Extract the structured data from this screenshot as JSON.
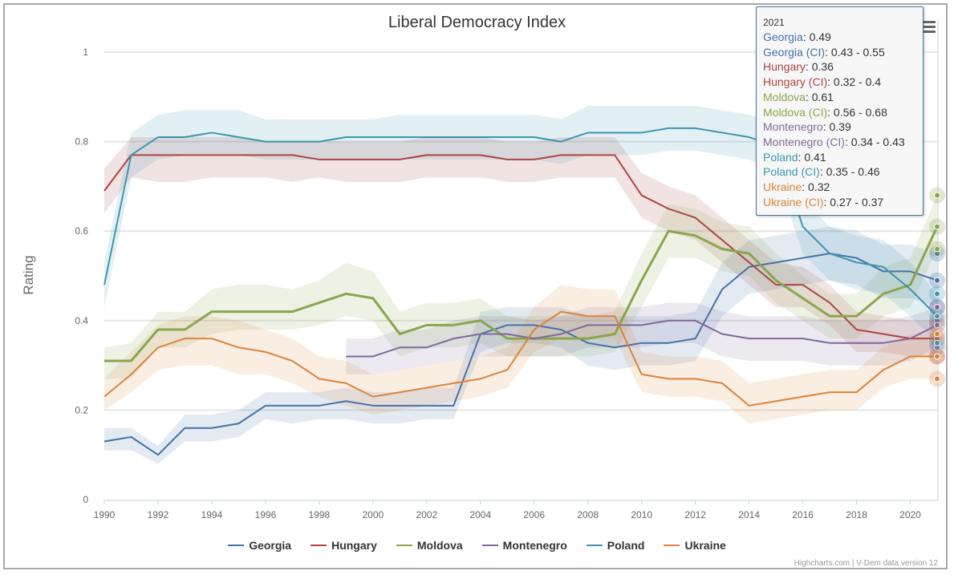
{
  "chart_data": {
    "type": "line",
    "title": "Liberal Democracy Index",
    "ylabel": "Rating",
    "xlabel": "",
    "ylim": [
      0,
      1
    ],
    "xlim": [
      1990,
      2021
    ],
    "y_ticks": [
      "0",
      "0.2",
      "0.4",
      "0.6",
      "0.8",
      "1"
    ],
    "x_ticks": [
      "1990",
      "1992",
      "1994",
      "1996",
      "1998",
      "2000",
      "2002",
      "2004",
      "2006",
      "2008",
      "2010",
      "2012",
      "2014",
      "2016",
      "2018",
      "2020"
    ],
    "grid": true,
    "legend_placement": "bottom",
    "x": [
      1990,
      1991,
      1992,
      1993,
      1994,
      1995,
      1996,
      1997,
      1998,
      1999,
      2000,
      2001,
      2002,
      2003,
      2004,
      2005,
      2006,
      2007,
      2008,
      2009,
      2010,
      2011,
      2012,
      2013,
      2014,
      2015,
      2016,
      2017,
      2018,
      2019,
      2020,
      2021
    ],
    "series": [
      {
        "name": "Georgia",
        "color": "#4572A7",
        "values": [
          0.13,
          0.14,
          0.1,
          0.16,
          0.16,
          0.17,
          0.21,
          0.21,
          0.21,
          0.22,
          0.21,
          0.21,
          0.21,
          0.21,
          0.37,
          0.39,
          0.39,
          0.38,
          0.35,
          0.34,
          0.35,
          0.35,
          0.36,
          0.47,
          0.52,
          0.53,
          0.54,
          0.55,
          0.54,
          0.51,
          0.51,
          0.49
        ],
        "ci_low": [
          0.11,
          0.11,
          0.08,
          0.13,
          0.13,
          0.14,
          0.18,
          0.17,
          0.18,
          0.18,
          0.17,
          0.17,
          0.18,
          0.18,
          0.33,
          0.35,
          0.35,
          0.34,
          0.3,
          0.29,
          0.3,
          0.3,
          0.31,
          0.41,
          0.46,
          0.47,
          0.48,
          0.49,
          0.48,
          0.45,
          0.45,
          0.43
        ],
        "ci_high": [
          0.16,
          0.16,
          0.12,
          0.19,
          0.19,
          0.2,
          0.24,
          0.24,
          0.24,
          0.25,
          0.24,
          0.24,
          0.25,
          0.25,
          0.42,
          0.43,
          0.43,
          0.43,
          0.41,
          0.41,
          0.41,
          0.41,
          0.42,
          0.53,
          0.58,
          0.59,
          0.6,
          0.61,
          0.6,
          0.57,
          0.57,
          0.55
        ]
      },
      {
        "name": "Hungary",
        "color": "#AA4643",
        "values": [
          0.69,
          0.77,
          0.77,
          0.77,
          0.77,
          0.77,
          0.77,
          0.77,
          0.76,
          0.76,
          0.76,
          0.76,
          0.77,
          0.77,
          0.77,
          0.76,
          0.76,
          0.77,
          0.77,
          0.77,
          0.68,
          0.65,
          0.63,
          0.58,
          0.53,
          0.48,
          0.48,
          0.44,
          0.38,
          0.37,
          0.36,
          0.36
        ],
        "ci_low": [
          0.64,
          0.72,
          0.71,
          0.71,
          0.72,
          0.72,
          0.72,
          0.71,
          0.72,
          0.71,
          0.71,
          0.71,
          0.72,
          0.72,
          0.72,
          0.71,
          0.71,
          0.72,
          0.72,
          0.72,
          0.63,
          0.6,
          0.58,
          0.53,
          0.48,
          0.43,
          0.43,
          0.39,
          0.33,
          0.33,
          0.32,
          0.32
        ],
        "ci_high": [
          0.74,
          0.81,
          0.81,
          0.81,
          0.81,
          0.81,
          0.8,
          0.8,
          0.8,
          0.8,
          0.8,
          0.8,
          0.81,
          0.81,
          0.81,
          0.8,
          0.8,
          0.81,
          0.81,
          0.81,
          0.73,
          0.7,
          0.68,
          0.63,
          0.58,
          0.53,
          0.52,
          0.48,
          0.42,
          0.41,
          0.4,
          0.4
        ]
      },
      {
        "name": "Moldova",
        "color": "#89A54E",
        "values": [
          0.31,
          0.31,
          0.38,
          0.38,
          0.42,
          0.42,
          0.42,
          0.42,
          0.44,
          0.46,
          0.45,
          0.37,
          0.39,
          0.39,
          0.4,
          0.36,
          0.36,
          0.36,
          0.36,
          0.37,
          0.49,
          0.6,
          0.59,
          0.56,
          0.55,
          0.49,
          0.45,
          0.41,
          0.41,
          0.46,
          0.48,
          0.61
        ],
        "ci_low": [
          0.27,
          0.27,
          0.34,
          0.34,
          0.37,
          0.38,
          0.38,
          0.38,
          0.39,
          0.41,
          0.4,
          0.32,
          0.34,
          0.34,
          0.35,
          0.32,
          0.32,
          0.32,
          0.32,
          0.33,
          0.43,
          0.54,
          0.54,
          0.51,
          0.5,
          0.44,
          0.4,
          0.36,
          0.36,
          0.41,
          0.43,
          0.56
        ],
        "ci_high": [
          0.34,
          0.35,
          0.42,
          0.42,
          0.47,
          0.48,
          0.48,
          0.47,
          0.49,
          0.53,
          0.51,
          0.42,
          0.44,
          0.44,
          0.45,
          0.41,
          0.41,
          0.41,
          0.41,
          0.42,
          0.55,
          0.66,
          0.65,
          0.62,
          0.61,
          0.55,
          0.5,
          0.46,
          0.46,
          0.52,
          0.54,
          0.68
        ]
      },
      {
        "name": "Montenegro",
        "color": "#80699B",
        "values": [
          null,
          null,
          null,
          null,
          null,
          null,
          null,
          null,
          null,
          0.32,
          0.32,
          0.34,
          0.34,
          0.36,
          0.37,
          0.37,
          0.36,
          0.37,
          0.39,
          0.39,
          0.39,
          0.4,
          0.4,
          0.37,
          0.36,
          0.36,
          0.36,
          0.35,
          0.35,
          0.35,
          0.36,
          0.39
        ],
        "ci_low": [
          null,
          null,
          null,
          null,
          null,
          null,
          null,
          null,
          null,
          0.28,
          0.28,
          0.29,
          0.3,
          0.31,
          0.32,
          0.32,
          0.32,
          0.32,
          0.34,
          0.34,
          0.34,
          0.35,
          0.35,
          0.32,
          0.31,
          0.31,
          0.31,
          0.3,
          0.3,
          0.3,
          0.31,
          0.34
        ],
        "ci_high": [
          null,
          null,
          null,
          null,
          null,
          null,
          null,
          null,
          null,
          0.36,
          0.36,
          0.38,
          0.38,
          0.4,
          0.41,
          0.41,
          0.4,
          0.41,
          0.43,
          0.43,
          0.43,
          0.44,
          0.44,
          0.42,
          0.41,
          0.41,
          0.41,
          0.4,
          0.4,
          0.4,
          0.41,
          0.43
        ]
      },
      {
        "name": "Poland",
        "color": "#3D96AE",
        "values": [
          0.48,
          0.77,
          0.81,
          0.81,
          0.82,
          0.81,
          0.8,
          0.8,
          0.8,
          0.81,
          0.81,
          0.81,
          0.81,
          0.81,
          0.81,
          0.81,
          0.81,
          0.8,
          0.82,
          0.82,
          0.82,
          0.83,
          0.83,
          0.82,
          0.81,
          0.79,
          0.61,
          0.55,
          0.53,
          0.52,
          0.47,
          0.41
        ],
        "ci_low": [
          0.43,
          0.72,
          0.76,
          0.77,
          0.77,
          0.77,
          0.76,
          0.76,
          0.76,
          0.76,
          0.76,
          0.76,
          0.76,
          0.76,
          0.76,
          0.76,
          0.76,
          0.75,
          0.77,
          0.77,
          0.77,
          0.78,
          0.78,
          0.77,
          0.76,
          0.73,
          0.55,
          0.49,
          0.47,
          0.46,
          0.41,
          0.35
        ],
        "ci_high": [
          0.53,
          0.82,
          0.86,
          0.87,
          0.87,
          0.87,
          0.85,
          0.85,
          0.85,
          0.85,
          0.85,
          0.86,
          0.86,
          0.86,
          0.86,
          0.86,
          0.86,
          0.85,
          0.88,
          0.88,
          0.88,
          0.88,
          0.88,
          0.87,
          0.86,
          0.84,
          0.67,
          0.61,
          0.59,
          0.58,
          0.53,
          0.46
        ]
      },
      {
        "name": "Ukraine",
        "color": "#DB843D",
        "values": [
          0.23,
          0.28,
          0.34,
          0.36,
          0.36,
          0.34,
          0.33,
          0.31,
          0.27,
          0.26,
          0.23,
          0.24,
          0.25,
          0.26,
          0.27,
          0.29,
          0.38,
          0.42,
          0.41,
          0.41,
          0.28,
          0.27,
          0.27,
          0.26,
          0.21,
          0.22,
          0.23,
          0.24,
          0.24,
          0.29,
          0.32,
          0.32
        ],
        "ci_low": [
          0.2,
          0.24,
          0.29,
          0.3,
          0.3,
          0.28,
          0.28,
          0.26,
          0.23,
          0.21,
          0.19,
          0.2,
          0.21,
          0.22,
          0.23,
          0.25,
          0.33,
          0.36,
          0.36,
          0.36,
          0.24,
          0.23,
          0.23,
          0.22,
          0.17,
          0.18,
          0.19,
          0.2,
          0.2,
          0.25,
          0.27,
          0.27
        ],
        "ci_high": [
          0.27,
          0.33,
          0.39,
          0.41,
          0.41,
          0.4,
          0.38,
          0.36,
          0.32,
          0.31,
          0.28,
          0.29,
          0.3,
          0.31,
          0.32,
          0.34,
          0.43,
          0.48,
          0.47,
          0.47,
          0.33,
          0.32,
          0.32,
          0.31,
          0.26,
          0.27,
          0.28,
          0.29,
          0.29,
          0.34,
          0.37,
          0.37
        ]
      }
    ]
  },
  "tooltip": {
    "header": "2021",
    "rows": [
      {
        "label": "Georgia",
        "value": "0.49",
        "color": "#4572A7"
      },
      {
        "label": "Georgia (CI)",
        "value": "0.43 - 0.55",
        "color": "#4572A7"
      },
      {
        "label": "Hungary",
        "value": "0.36",
        "color": "#AA4643"
      },
      {
        "label": "Hungary (CI)",
        "value": "0.32 - 0.4",
        "color": "#AA4643"
      },
      {
        "label": "Moldova",
        "value": "0.61",
        "color": "#89A54E"
      },
      {
        "label": "Moldova (CI)",
        "value": "0.56 - 0.68",
        "color": "#89A54E"
      },
      {
        "label": "Montenegro",
        "value": "0.39",
        "color": "#80699B"
      },
      {
        "label": "Montenegro (CI)",
        "value": "0.34 - 0.43",
        "color": "#80699B"
      },
      {
        "label": "Poland",
        "value": "0.41",
        "color": "#3D96AE"
      },
      {
        "label": "Poland (CI)",
        "value": "0.35 - 0.46",
        "color": "#3D96AE"
      },
      {
        "label": "Ukraine",
        "value": "0.32",
        "color": "#DB843D"
      },
      {
        "label": "Ukraine (CI)",
        "value": "0.27 - 0.37",
        "color": "#DB843D"
      }
    ]
  },
  "credits": "Highcharts.com | V-Dem data version 12",
  "menu_icon": "hamburger-menu-icon"
}
